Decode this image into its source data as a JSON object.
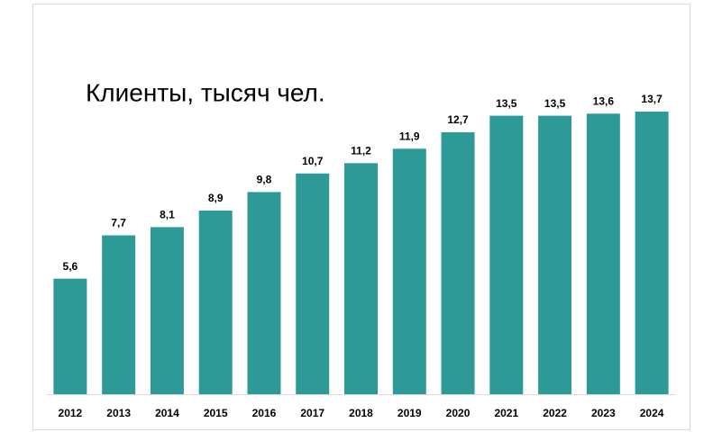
{
  "chart_data": {
    "type": "bar",
    "title": "Клиенты, тысяч чел.",
    "categories": [
      "2012",
      "2013",
      "2014",
      "2015",
      "2016",
      "2017",
      "2018",
      "2019",
      "2020",
      "2021",
      "2022",
      "2023",
      "2024"
    ],
    "values": [
      5.6,
      7.7,
      8.1,
      8.9,
      9.8,
      10.7,
      11.2,
      11.9,
      12.7,
      13.5,
      13.5,
      13.6,
      13.7
    ],
    "value_labels": [
      "5,6",
      "7,7",
      "8,1",
      "8,9",
      "9,8",
      "10,7",
      "11,2",
      "11,9",
      "12,7",
      "13,5",
      "13,5",
      "13,6",
      "13,7"
    ],
    "color": "#2e9a98"
  }
}
